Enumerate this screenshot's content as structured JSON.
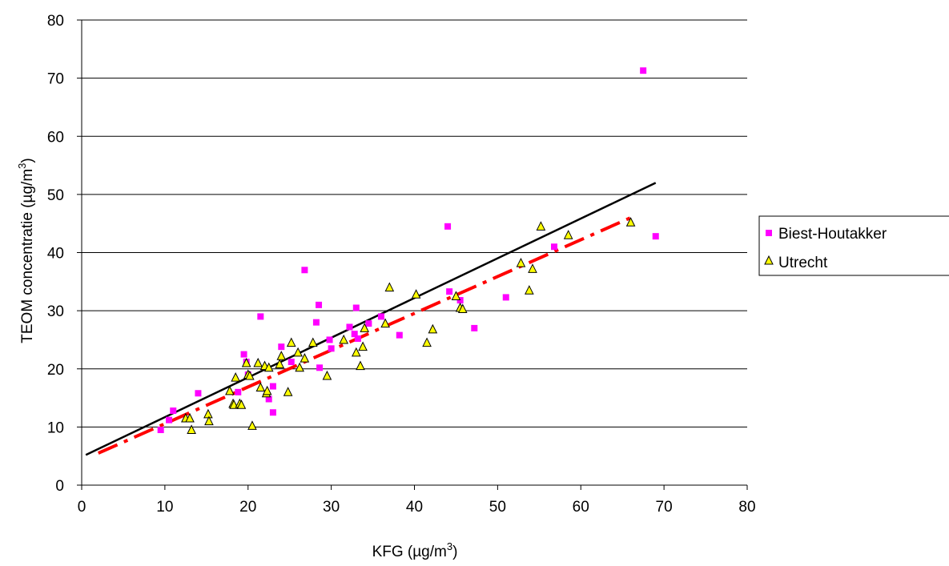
{
  "chart_data": {
    "type": "scatter",
    "title": "",
    "xlabel": "KFG (µg/m3)",
    "xlabel_parts": {
      "base": "KFG (µg/m",
      "sup": "3",
      "end": ")"
    },
    "ylabel": "TEOM concentratie (µg/m3)",
    "ylabel_parts": {
      "base": "TEOM concentratie (µg/m",
      "sup": "3",
      "end": ")"
    },
    "xlim": [
      0,
      80
    ],
    "ylim": [
      0,
      80
    ],
    "x_ticks": [
      "0",
      "10",
      "20",
      "30",
      "40",
      "50",
      "60",
      "70",
      "80"
    ],
    "y_ticks": [
      "0",
      "10",
      "20",
      "30",
      "40",
      "50",
      "60",
      "70",
      "80"
    ],
    "grid": "horizontal",
    "legend_position": "right",
    "series": [
      {
        "name": "Biest-Houtakker",
        "marker": "square",
        "color": "#ff00ff",
        "points": [
          [
            9.5,
            9.5
          ],
          [
            10.5,
            11.2
          ],
          [
            11.0,
            12.8
          ],
          [
            14.0,
            15.8
          ],
          [
            18.8,
            16.0
          ],
          [
            19.5,
            22.5
          ],
          [
            19.8,
            21.2
          ],
          [
            20.0,
            19.0
          ],
          [
            21.5,
            29.0
          ],
          [
            22.5,
            14.8
          ],
          [
            23.0,
            17.0
          ],
          [
            23.0,
            12.5
          ],
          [
            24.0,
            23.8
          ],
          [
            25.2,
            21.2
          ],
          [
            26.8,
            37.0
          ],
          [
            28.2,
            28.0
          ],
          [
            28.5,
            31.0
          ],
          [
            28.6,
            20.2
          ],
          [
            29.8,
            25.0
          ],
          [
            30.0,
            23.5
          ],
          [
            32.2,
            27.2
          ],
          [
            32.8,
            26.0
          ],
          [
            33.0,
            30.5
          ],
          [
            33.2,
            25.2
          ],
          [
            34.5,
            27.8
          ],
          [
            36.0,
            29.0
          ],
          [
            38.2,
            25.8
          ],
          [
            44.0,
            44.5
          ],
          [
            44.2,
            33.3
          ],
          [
            45.5,
            31.8
          ],
          [
            47.2,
            27.0
          ],
          [
            51.0,
            32.3
          ],
          [
            56.8,
            41.0
          ],
          [
            67.5,
            71.3
          ],
          [
            69.0,
            42.8
          ]
        ]
      },
      {
        "name": "Utrecht",
        "marker": "triangle",
        "color": "#ffff00",
        "points": [
          [
            12.5,
            11.5
          ],
          [
            13.0,
            11.5
          ],
          [
            13.2,
            9.5
          ],
          [
            15.2,
            12.2
          ],
          [
            15.3,
            11.0
          ],
          [
            17.8,
            16.2
          ],
          [
            18.2,
            14.0
          ],
          [
            18.3,
            13.8
          ],
          [
            18.5,
            18.5
          ],
          [
            19.0,
            14.0
          ],
          [
            19.2,
            13.8
          ],
          [
            19.8,
            21.0
          ],
          [
            20.0,
            19.0
          ],
          [
            20.2,
            18.8
          ],
          [
            20.5,
            10.2
          ],
          [
            21.2,
            21.0
          ],
          [
            21.5,
            16.8
          ],
          [
            22.0,
            20.5
          ],
          [
            22.2,
            15.8
          ],
          [
            22.3,
            16.2
          ],
          [
            22.5,
            20.2
          ],
          [
            23.8,
            20.8
          ],
          [
            24.0,
            22.2
          ],
          [
            24.8,
            16.0
          ],
          [
            25.2,
            24.5
          ],
          [
            26.0,
            22.8
          ],
          [
            26.2,
            20.2
          ],
          [
            26.8,
            21.8
          ],
          [
            27.8,
            24.5
          ],
          [
            29.5,
            18.8
          ],
          [
            31.5,
            25.0
          ],
          [
            33.0,
            22.8
          ],
          [
            33.5,
            20.5
          ],
          [
            33.8,
            23.8
          ],
          [
            34.0,
            27.0
          ],
          [
            36.5,
            27.8
          ],
          [
            37.0,
            34.0
          ],
          [
            40.2,
            32.8
          ],
          [
            41.5,
            24.5
          ],
          [
            42.2,
            26.8
          ],
          [
            45.0,
            32.5
          ],
          [
            45.5,
            30.5
          ],
          [
            45.8,
            30.3
          ],
          [
            52.8,
            38.2
          ],
          [
            53.8,
            33.5
          ],
          [
            54.2,
            37.2
          ],
          [
            55.2,
            44.5
          ],
          [
            58.5,
            43.0
          ],
          [
            66.0,
            45.2
          ]
        ]
      }
    ],
    "trendlines": [
      {
        "style": "solid",
        "color": "#000000",
        "points": [
          [
            0.5,
            5.2
          ],
          [
            69.0,
            52.0
          ]
        ]
      },
      {
        "style": "dashed",
        "color": "#ff0000",
        "points": [
          [
            2.0,
            5.5
          ],
          [
            66.0,
            46.0
          ]
        ]
      }
    ]
  }
}
